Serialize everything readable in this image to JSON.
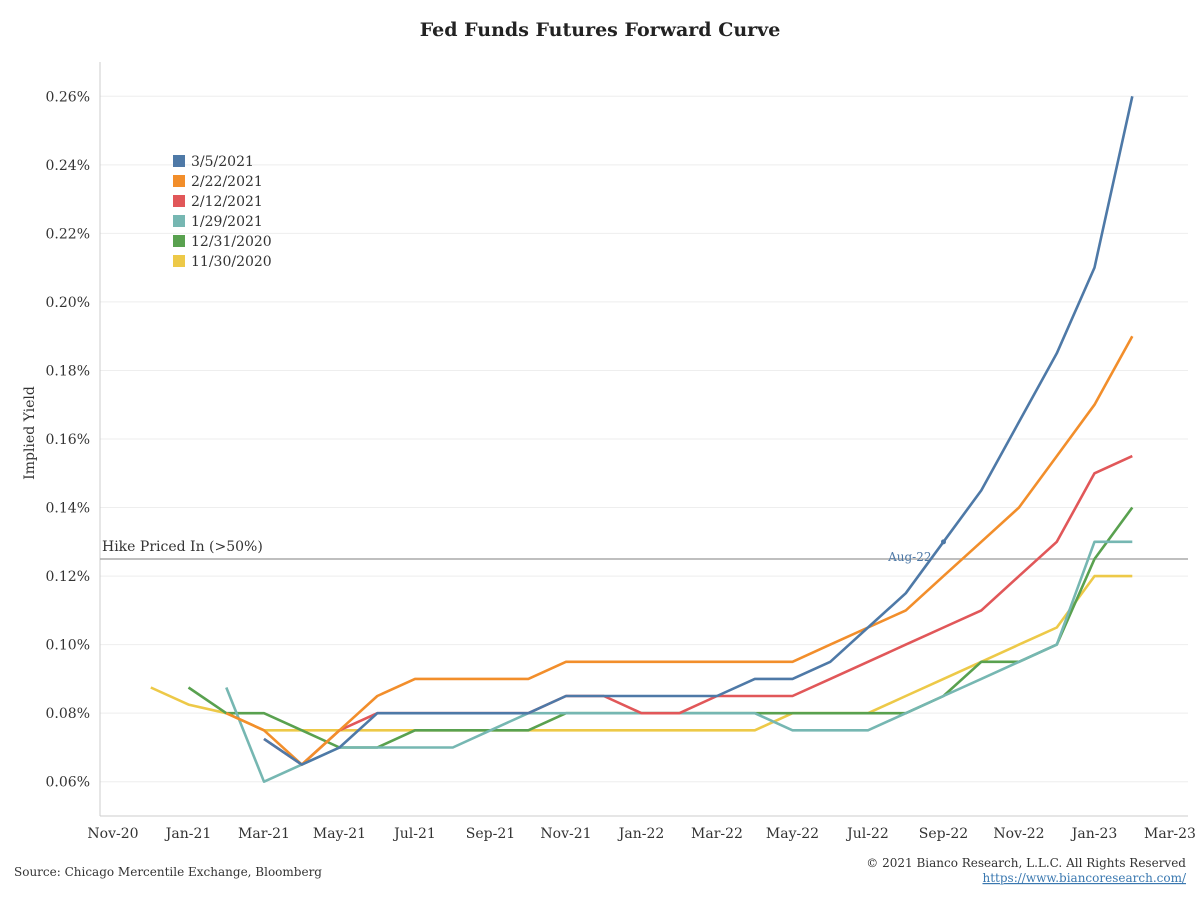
{
  "chart_data": {
    "type": "line",
    "title": "Fed Funds Futures Forward Curve",
    "ylabel": "Implied Yield",
    "xlabel": "",
    "x_ticks": [
      "Nov-20",
      "Jan-21",
      "Mar-21",
      "May-21",
      "Jul-21",
      "Sep-21",
      "Nov-21",
      "Jan-22",
      "Mar-22",
      "May-22",
      "Jul-22",
      "Sep-22",
      "Nov-22",
      "Jan-23",
      "Mar-23"
    ],
    "y_ticks": [
      "0.06%",
      "0.08%",
      "0.10%",
      "0.12%",
      "0.14%",
      "0.16%",
      "0.18%",
      "0.20%",
      "0.22%",
      "0.24%",
      "0.26%"
    ],
    "ylim": [
      0.05,
      0.27
    ],
    "grid": "horizontal",
    "legend_position": "top-left",
    "reference_line": {
      "label": "Hike Priced In (>50%)",
      "value": 0.125,
      "color": "#aaaaaa"
    },
    "point_annotation": {
      "label": "Aug-22",
      "series": "3/5/2021",
      "x": "Aug-22",
      "y": 0.13
    },
    "series": [
      {
        "name": "3/5/2021",
        "color": "#4e79a7",
        "points": [
          [
            "Mar-21",
            0.0725
          ],
          [
            "Apr-21",
            0.065
          ],
          [
            "May-21",
            0.07
          ],
          [
            "Jun-21",
            0.08
          ],
          [
            "Jul-21",
            0.08
          ],
          [
            "Aug-21",
            0.08
          ],
          [
            "Sep-21",
            0.08
          ],
          [
            "Oct-21",
            0.08
          ],
          [
            "Nov-21",
            0.085
          ],
          [
            "Dec-21",
            0.085
          ],
          [
            "Jan-22",
            0.085
          ],
          [
            "Feb-22",
            0.085
          ],
          [
            "Mar-22",
            0.085
          ],
          [
            "Apr-22",
            0.09
          ],
          [
            "May-22",
            0.09
          ],
          [
            "Jun-22",
            0.095
          ],
          [
            "Jul-22",
            0.105
          ],
          [
            "Aug-22",
            0.115
          ],
          [
            "Sep-22",
            0.13
          ],
          [
            "Oct-22",
            0.145
          ],
          [
            "Nov-22",
            0.165
          ],
          [
            "Dec-22",
            0.185
          ],
          [
            "Jan-23",
            0.21
          ],
          [
            "Feb-23",
            0.26
          ]
        ]
      },
      {
        "name": "2/22/2021",
        "color": "#f28e2b",
        "points": [
          [
            "Feb-21",
            0.08
          ],
          [
            "Mar-21",
            0.075
          ],
          [
            "Apr-21",
            0.065
          ],
          [
            "May-21",
            0.075
          ],
          [
            "Jun-21",
            0.085
          ],
          [
            "Jul-21",
            0.09
          ],
          [
            "Aug-21",
            0.09
          ],
          [
            "Sep-21",
            0.09
          ],
          [
            "Oct-21",
            0.09
          ],
          [
            "Nov-21",
            0.095
          ],
          [
            "Dec-21",
            0.095
          ],
          [
            "Jan-22",
            0.095
          ],
          [
            "Feb-22",
            0.095
          ],
          [
            "Mar-22",
            0.095
          ],
          [
            "Apr-22",
            0.095
          ],
          [
            "May-22",
            0.095
          ],
          [
            "Jun-22",
            0.1
          ],
          [
            "Jul-22",
            0.105
          ],
          [
            "Aug-22",
            0.11
          ],
          [
            "Sep-22",
            0.12
          ],
          [
            "Oct-22",
            0.13
          ],
          [
            "Nov-22",
            0.14
          ],
          [
            "Dec-22",
            0.155
          ],
          [
            "Jan-23",
            0.17
          ],
          [
            "Feb-23",
            0.19
          ]
        ]
      },
      {
        "name": "2/12/2021",
        "color": "#e15759",
        "points": [
          [
            "Mar-21",
            0.0725
          ],
          [
            "Apr-21",
            0.065
          ],
          [
            "May-21",
            0.075
          ],
          [
            "Jun-21",
            0.08
          ],
          [
            "Jul-21",
            0.08
          ],
          [
            "Aug-21",
            0.08
          ],
          [
            "Sep-21",
            0.08
          ],
          [
            "Oct-21",
            0.08
          ],
          [
            "Nov-21",
            0.085
          ],
          [
            "Dec-21",
            0.085
          ],
          [
            "Jan-22",
            0.08
          ],
          [
            "Feb-22",
            0.08
          ],
          [
            "Mar-22",
            0.085
          ],
          [
            "Apr-22",
            0.085
          ],
          [
            "May-22",
            0.085
          ],
          [
            "Jun-22",
            0.09
          ],
          [
            "Jul-22",
            0.095
          ],
          [
            "Aug-22",
            0.1
          ],
          [
            "Sep-22",
            0.105
          ],
          [
            "Oct-22",
            0.11
          ],
          [
            "Nov-22",
            0.12
          ],
          [
            "Dec-22",
            0.13
          ],
          [
            "Jan-23",
            0.15
          ],
          [
            "Feb-23",
            0.155
          ]
        ]
      },
      {
        "name": "1/29/2021",
        "color": "#76b7b2",
        "points": [
          [
            "Feb-21",
            0.0875
          ],
          [
            "Mar-21",
            0.06
          ],
          [
            "Apr-21",
            0.065
          ],
          [
            "May-21",
            0.07
          ],
          [
            "Jun-21",
            0.07
          ],
          [
            "Jul-21",
            0.07
          ],
          [
            "Aug-21",
            0.07
          ],
          [
            "Sep-21",
            0.075
          ],
          [
            "Oct-21",
            0.08
          ],
          [
            "Nov-21",
            0.08
          ],
          [
            "Dec-21",
            0.08
          ],
          [
            "Jan-22",
            0.08
          ],
          [
            "Feb-22",
            0.08
          ],
          [
            "Mar-22",
            0.08
          ],
          [
            "Apr-22",
            0.08
          ],
          [
            "May-22",
            0.075
          ],
          [
            "Jun-22",
            0.075
          ],
          [
            "Jul-22",
            0.075
          ],
          [
            "Aug-22",
            0.08
          ],
          [
            "Sep-22",
            0.085
          ],
          [
            "Oct-22",
            0.09
          ],
          [
            "Nov-22",
            0.095
          ],
          [
            "Dec-22",
            0.1
          ],
          [
            "Jan-23",
            0.13
          ],
          [
            "Feb-23",
            0.13
          ]
        ]
      },
      {
        "name": "12/31/2020",
        "color": "#59a14f",
        "points": [
          [
            "Jan-21",
            0.0875
          ],
          [
            "Feb-21",
            0.08
          ],
          [
            "Mar-21",
            0.08
          ],
          [
            "Apr-21",
            0.075
          ],
          [
            "May-21",
            0.07
          ],
          [
            "Jun-21",
            0.07
          ],
          [
            "Jul-21",
            0.075
          ],
          [
            "Aug-21",
            0.075
          ],
          [
            "Sep-21",
            0.075
          ],
          [
            "Oct-21",
            0.075
          ],
          [
            "Nov-21",
            0.08
          ],
          [
            "Dec-21",
            0.08
          ],
          [
            "Jan-22",
            0.08
          ],
          [
            "Feb-22",
            0.08
          ],
          [
            "Mar-22",
            0.08
          ],
          [
            "Apr-22",
            0.08
          ],
          [
            "May-22",
            0.08
          ],
          [
            "Jun-22",
            0.08
          ],
          [
            "Jul-22",
            0.08
          ],
          [
            "Aug-22",
            0.08
          ],
          [
            "Sep-22",
            0.085
          ],
          [
            "Oct-22",
            0.095
          ],
          [
            "Nov-22",
            0.095
          ],
          [
            "Dec-22",
            0.1
          ],
          [
            "Jan-23",
            0.125
          ],
          [
            "Feb-23",
            0.14
          ]
        ]
      },
      {
        "name": "11/30/2020",
        "color": "#edc948",
        "points": [
          [
            "Dec-20",
            0.0875
          ],
          [
            "Jan-21",
            0.0825
          ],
          [
            "Feb-21",
            0.08
          ],
          [
            "Mar-21",
            0.075
          ],
          [
            "Apr-21",
            0.075
          ],
          [
            "May-21",
            0.075
          ],
          [
            "Jun-21",
            0.075
          ],
          [
            "Jul-21",
            0.075
          ],
          [
            "Aug-21",
            0.075
          ],
          [
            "Sep-21",
            0.075
          ],
          [
            "Oct-21",
            0.075
          ],
          [
            "Nov-21",
            0.075
          ],
          [
            "Dec-21",
            0.075
          ],
          [
            "Jan-22",
            0.075
          ],
          [
            "Feb-22",
            0.075
          ],
          [
            "Mar-22",
            0.075
          ],
          [
            "Apr-22",
            0.075
          ],
          [
            "May-22",
            0.08
          ],
          [
            "Jun-22",
            0.08
          ],
          [
            "Jul-22",
            0.08
          ],
          [
            "Aug-22",
            0.085
          ],
          [
            "Sep-22",
            0.09
          ],
          [
            "Oct-22",
            0.095
          ],
          [
            "Nov-22",
            0.1
          ],
          [
            "Dec-22",
            0.105
          ],
          [
            "Jan-23",
            0.12
          ],
          [
            "Feb-23",
            0.12
          ]
        ]
      }
    ]
  },
  "footer": {
    "source": "Source: Chicago Mercentile Exchange, Bloomberg",
    "copyright": "© 2021 Bianco Research, L.L.C. All Rights Reserved",
    "url": "https://www.biancoresearch.com/"
  }
}
